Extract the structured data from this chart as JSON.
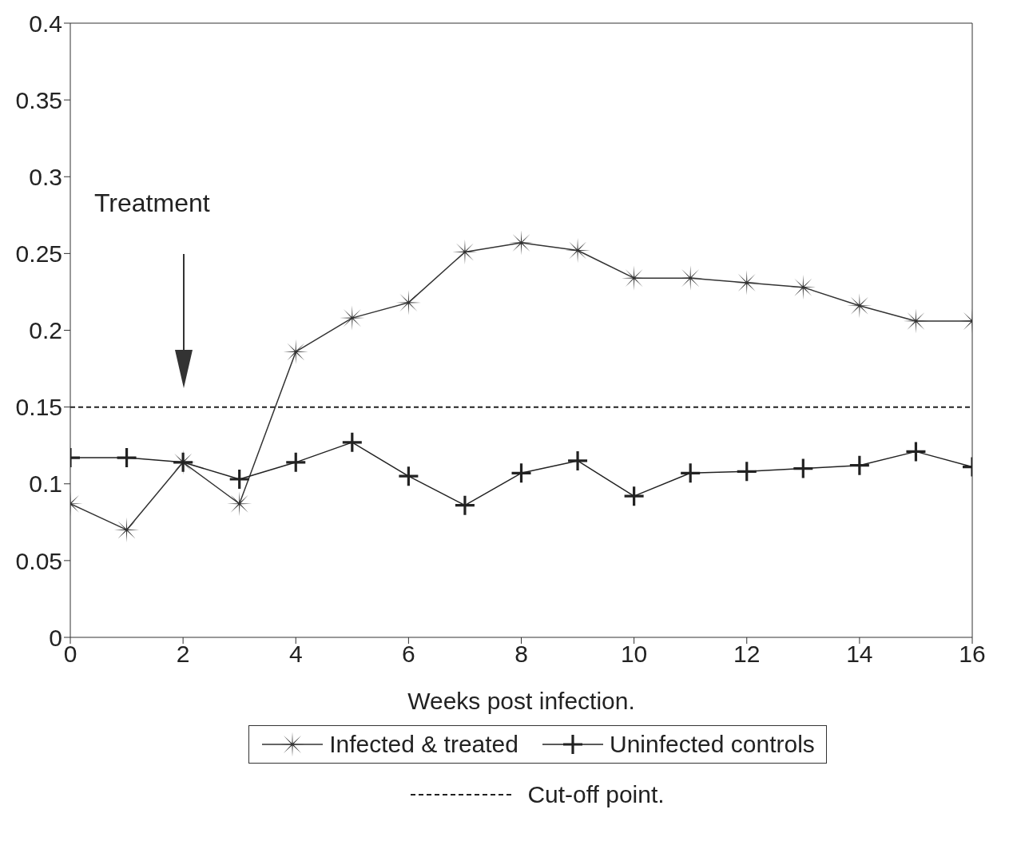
{
  "chart_data": {
    "type": "line",
    "xlabel": "Weeks post infection.",
    "x": [
      0,
      1,
      2,
      3,
      4,
      5,
      6,
      7,
      8,
      9,
      10,
      11,
      12,
      13,
      14,
      15,
      16
    ],
    "series": [
      {
        "name": "Infected & treated",
        "color": "#333333",
        "marker": "star",
        "values": [
          0.087,
          0.07,
          0.114,
          0.087,
          0.186,
          0.208,
          0.218,
          0.251,
          0.257,
          0.252,
          0.234,
          0.234,
          0.231,
          0.228,
          0.216,
          0.206,
          0.206
        ]
      },
      {
        "name": "Uninfected controls",
        "color": "#222222",
        "marker": "cross",
        "values": [
          0.117,
          0.117,
          0.114,
          0.103,
          0.114,
          0.127,
          0.105,
          0.086,
          0.107,
          0.115,
          0.092,
          0.107,
          0.108,
          0.11,
          0.112,
          0.121,
          0.111
        ]
      }
    ],
    "xlim": [
      0,
      16
    ],
    "xticks": [
      0,
      2,
      4,
      6,
      8,
      10,
      12,
      14,
      16
    ],
    "ylim": [
      0,
      0.4
    ],
    "yticks": [
      0,
      0.05,
      0.1,
      0.15,
      0.2,
      0.25,
      0.3,
      0.35,
      0.4
    ],
    "ref_lines": [
      {
        "axis": "y",
        "value": 0.15,
        "label": "Cut-off point.",
        "color": "#222222",
        "line_style": "dashed"
      }
    ],
    "annotations": [
      "Treatment"
    ],
    "legend": "bottom",
    "grid": false,
    "line_style": "solid"
  }
}
